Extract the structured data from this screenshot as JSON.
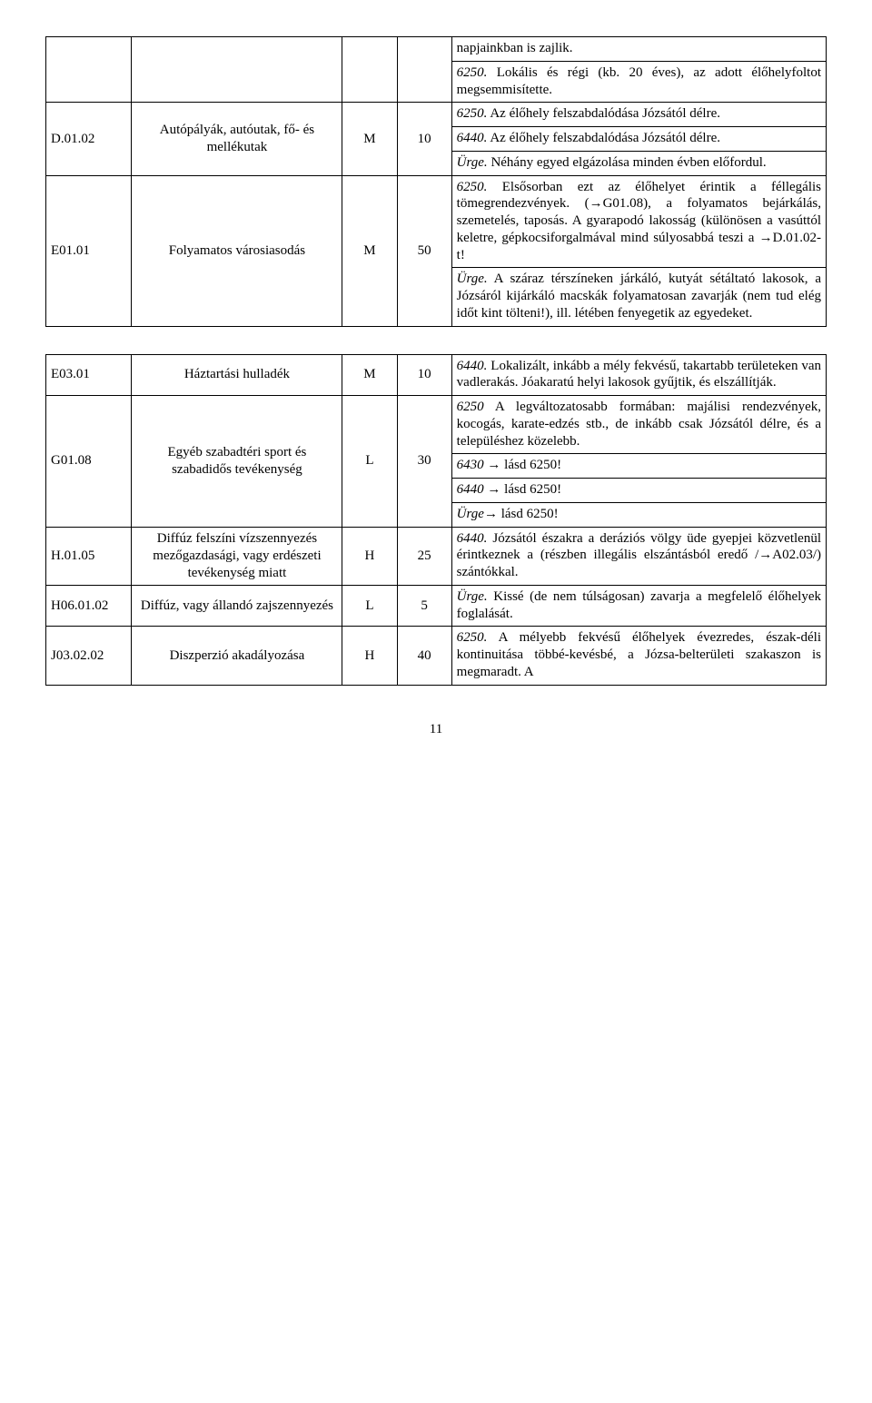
{
  "table1": {
    "rows": [
      {
        "code": "",
        "name": "",
        "m": "",
        "n": "",
        "desc": [
          {
            "text": "napjainkban is zajlik.",
            "style": ""
          },
          {
            "text": "<span class='italic'>6250.</span> Lokális és régi (kb. 20 éves), az adott élőhelyfoltot megsemmisítette.",
            "style": "justify"
          }
        ]
      },
      {
        "code": "D.01.02",
        "name": "Autópályák, autóutak, fő- és mellékutak",
        "m": "M",
        "n": "10",
        "desc": [
          {
            "text": "<span class='italic'>6250.</span> Az élőhely felszabdalódása Józsától délre.",
            "style": "justify"
          },
          {
            "text": "<span class='italic'>6440.</span> Az élőhely felszabdalódása Józsától délre.",
            "style": "justify"
          },
          {
            "text": "<span class='italic'>Ürge.</span> Néhány egyed elgázolása minden évben előfordul.",
            "style": "justify"
          }
        ]
      },
      {
        "code": "E01.01",
        "name": "Folyamatos városiasodás",
        "m": "M",
        "n": "50",
        "desc": [
          {
            "text": "<span class='italic'>6250.</span> Elsősorban ezt az élőhelyet érintik a féllegális tömegrendezvények. (→G01.08), a folyamatos bejárkálás, szemetelés, taposás. A gyarapodó lakosság (különösen a vasúttól keletre, gépkocsiforgalmával mind súlyosabbá teszi a →D.01.02-t!",
            "style": "justify"
          },
          {
            "text": "<span class='italic'>Ürge.</span> A száraz térszíneken járkáló, kutyát sétáltató lakosok, a Józsáról kijárkáló macskák folyamatosan zavarják (nem tud elég időt kint tölteni!), ill. létében fenyegetik az egyedeket.",
            "style": "justify"
          }
        ]
      }
    ]
  },
  "table2": {
    "rows": [
      {
        "code": "E03.01",
        "name": "Háztartási hulladék",
        "m": "M",
        "n": "10",
        "desc": [
          {
            "text": "<span class='italic'>6440.</span> Lokalizált, inkább a mély fekvésű, takartabb területeken van vadlerakás. Jóakaratú helyi lakosok gyűjtik, és elszállítják.",
            "style": "justify"
          }
        ]
      },
      {
        "code": "G01.08",
        "name": "Egyéb szabadtéri sport és szabadidős tevékenység",
        "m": "L",
        "n": "30",
        "desc": [
          {
            "text": "<span class='italic'>6250</span> A legváltozatosabb formában: majálisi rendezvények, kocogás, karate-edzés stb., de inkább csak Józsától délre, és a településhez közelebb.",
            "style": "justify"
          },
          {
            "text": "<span class='italic'>6430</span> → lásd 6250!",
            "style": ""
          },
          {
            "text": "<span class='italic'>6440</span> → lásd 6250!",
            "style": ""
          },
          {
            "text": "<span class='italic'>Ürge</span>→ lásd 6250!",
            "style": ""
          }
        ]
      },
      {
        "code": "H.01.05",
        "name": "Diffúz felszíni vízszennyezés mezőgazdasági, vagy erdészeti tevékenység miatt",
        "m": "H",
        "n": "25",
        "desc": [
          {
            "text": "<span class='italic'>6440.</span> Józsától északra a deráziós völgy üde gyepjei közvetlenül érintkeznek a (részben illegális elszántásból eredő /→A02.03/) szántókkal.",
            "style": "justify"
          }
        ]
      },
      {
        "code": "H06.01.02",
        "name": "Diffúz, vagy állandó zajszennyezés",
        "m": "L",
        "n": "5",
        "desc": [
          {
            "text": "<span class='italic'>Ürge.</span> Kissé (de nem túlságosan) zavarja a megfelelő élőhelyek foglalását.",
            "style": "justify"
          }
        ]
      },
      {
        "code": "J03.02.02",
        "name": "Diszperzió akadályozása",
        "m": "H",
        "n": "40",
        "desc": [
          {
            "text": "<span class='italic'>6250.</span> A mélyebb fekvésű élőhelyek évezredes, észak-déli kontinuitása többé-kevésbé, a Józsa-belterületi szakaszon is megmaradt. A",
            "style": "justify"
          }
        ]
      }
    ]
  },
  "pageNumber": "11"
}
